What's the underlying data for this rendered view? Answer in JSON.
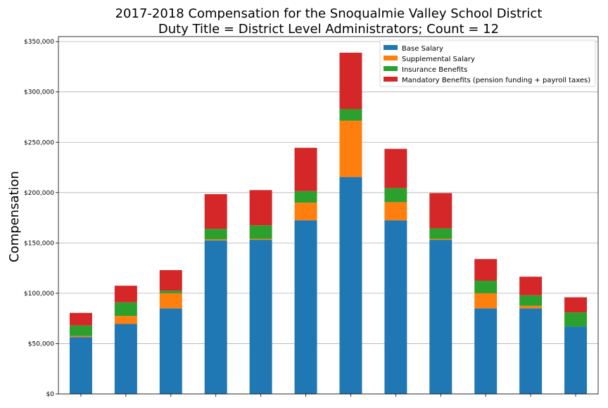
{
  "chart_data": {
    "type": "bar",
    "stacked": true,
    "title_line1": "2017-2018 Compensation for the Snoqualmie Valley School District",
    "title_line2": "Duty Title = District Level Administrators; Count = 12",
    "xlabel": "",
    "ylabel": "Compensation",
    "ylim": [
      0,
      355000
    ],
    "yticks": [
      0,
      50000,
      100000,
      150000,
      200000,
      250000,
      300000,
      350000
    ],
    "ytick_labels": [
      "$0",
      "$50,000",
      "$100,000",
      "$150,000",
      "$200,000",
      "$250,000",
      "$300,000",
      "$350,000"
    ],
    "grid": "horizontal",
    "legend_position": "top-right",
    "categories": [
      "",
      "",
      "",
      "",
      "",
      "",
      "",
      "",
      "",
      "",
      "",
      ""
    ],
    "series": [
      {
        "name": "Base Salary",
        "color": "#1f77b4",
        "values": [
          56500,
          69500,
          85000,
          152500,
          153000,
          172500,
          215500,
          172500,
          153000,
          85000,
          85000,
          67000
        ]
      },
      {
        "name": "Supplemental Salary",
        "color": "#ff7f0e",
        "values": [
          1000,
          8000,
          15000,
          1000,
          1000,
          17500,
          56000,
          18000,
          1000,
          15000,
          2500,
          0
        ]
      },
      {
        "name": "Insurance Benefits",
        "color": "#2ca02c",
        "values": [
          10500,
          13500,
          2500,
          10500,
          13500,
          11500,
          11500,
          14000,
          10500,
          12500,
          10500,
          14000
        ]
      },
      {
        "name": "Mandatory Benefits (pension funding + payroll taxes)",
        "color": "#d62728",
        "values": [
          12500,
          16500,
          20500,
          34500,
          35000,
          43000,
          56000,
          39000,
          35000,
          21500,
          18500,
          15000
        ]
      }
    ]
  }
}
